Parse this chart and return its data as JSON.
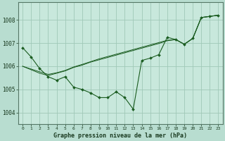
{
  "xlabel": "Graphe pression niveau de la mer (hPa)",
  "bg_color": "#b8ddd0",
  "plot_bg_color": "#c8e8dc",
  "grid_color": "#a0c8b8",
  "line_color": "#1a5c20",
  "xlim": [
    -0.5,
    23.5
  ],
  "ylim": [
    1003.5,
    1008.75
  ],
  "yticks": [
    1004,
    1005,
    1006,
    1007,
    1008
  ],
  "xticks": [
    0,
    1,
    2,
    3,
    4,
    5,
    6,
    7,
    8,
    9,
    10,
    11,
    12,
    13,
    14,
    15,
    16,
    17,
    18,
    19,
    20,
    21,
    22,
    23
  ],
  "series_main": [
    1006.8,
    1006.4,
    1005.9,
    1005.55,
    1005.4,
    1005.55,
    1005.1,
    1005.0,
    1004.85,
    1004.65,
    1004.65,
    1004.9,
    1004.65,
    1004.15,
    1006.25,
    1006.35,
    1006.5,
    1007.25,
    1007.15,
    1006.95,
    1007.2,
    1008.1,
    1008.15,
    1008.2
  ],
  "series_line2": [
    1006.0,
    1005.85,
    1005.7,
    1005.6,
    1005.7,
    1005.8,
    1005.95,
    1006.05,
    1006.18,
    1006.28,
    1006.38,
    1006.48,
    1006.58,
    1006.68,
    1006.78,
    1006.88,
    1006.98,
    1007.1,
    1007.15,
    1006.95,
    1007.2,
    1008.1,
    1008.15,
    1008.2
  ],
  "series_line3": [
    1006.0,
    1005.88,
    1005.76,
    1005.65,
    1005.72,
    1005.82,
    1005.97,
    1006.08,
    1006.2,
    1006.32,
    1006.42,
    1006.52,
    1006.62,
    1006.72,
    1006.82,
    1006.92,
    1007.02,
    1007.12,
    1007.15,
    1006.95,
    1007.2,
    1008.1,
    1008.15,
    1008.2
  ]
}
